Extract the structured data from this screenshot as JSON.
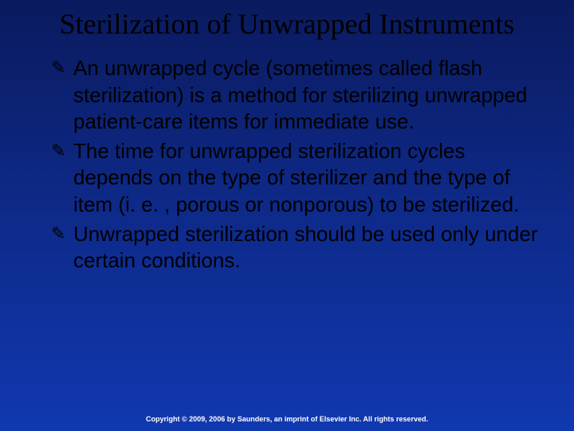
{
  "slide": {
    "title": "Sterilization of Unwrapped Instruments",
    "title_font_family": "Times New Roman",
    "title_fontsize": 36,
    "title_color": "#000000",
    "background_gradient": [
      "#0a1a5e",
      "#0e2a8a",
      "#1038b0"
    ],
    "bullet_glyph": "✎",
    "bullets": [
      "An unwrapped cycle (sometimes called flash sterilization) is a method for sterilizing unwrapped patient-care items for immediate use.",
      "The time for unwrapped sterilization cycles depends on the type of sterilizer and the type of item (i. e. , porous or nonporous) to be sterilized.",
      "Unwrapped sterilization should be used only under certain conditions."
    ],
    "body_fontsize": 26,
    "body_color": "#000000",
    "footer": "Copyright © 2009, 2006 by Saunders, an imprint of Elsevier Inc. All rights reserved.",
    "footer_color": "#ffffff",
    "footer_fontsize": 9
  }
}
